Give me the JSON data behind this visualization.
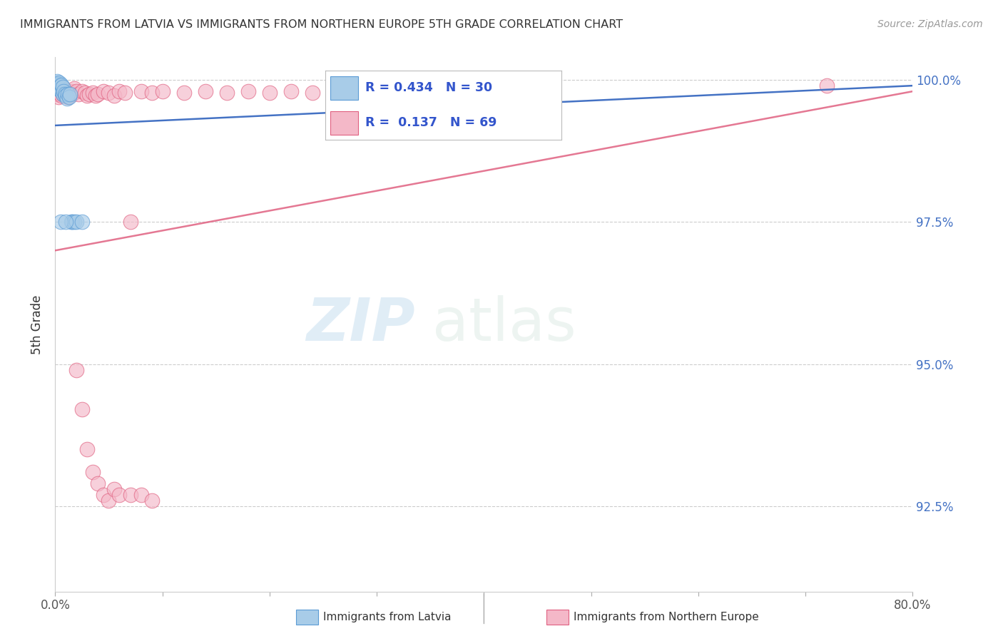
{
  "title": "IMMIGRANTS FROM LATVIA VS IMMIGRANTS FROM NORTHERN EUROPE 5TH GRADE CORRELATION CHART",
  "source": "Source: ZipAtlas.com",
  "ylabel": "5th Grade",
  "xlim": [
    0.0,
    0.8
  ],
  "ylim": [
    0.91,
    1.004
  ],
  "x_tick_positions": [
    0.0,
    0.1,
    0.2,
    0.3,
    0.4,
    0.5,
    0.6,
    0.7,
    0.8
  ],
  "x_tick_labels": [
    "0.0%",
    "",
    "",
    "",
    "",
    "",
    "",
    "",
    "80.0%"
  ],
  "y_tick_positions": [
    0.925,
    0.95,
    0.975,
    1.0
  ],
  "y_tick_labels_right": [
    "92.5%",
    "95.0%",
    "97.5%",
    "100.0%"
  ],
  "blue_color": "#a8cce8",
  "blue_edge_color": "#5b9bd5",
  "pink_color": "#f4b8c8",
  "pink_edge_color": "#e06080",
  "blue_line_color": "#4472c4",
  "pink_line_color": "#e07090",
  "blue_x": [
    0.001,
    0.001,
    0.002,
    0.002,
    0.002,
    0.003,
    0.003,
    0.003,
    0.004,
    0.004,
    0.005,
    0.005,
    0.006,
    0.006,
    0.007,
    0.007,
    0.008,
    0.009,
    0.01,
    0.011,
    0.012,
    0.013,
    0.014,
    0.015,
    0.016,
    0.018,
    0.02,
    0.025,
    0.005,
    0.01
  ],
  "blue_y": [
    0.9995,
    0.9985,
    0.9992,
    0.9988,
    0.9998,
    0.999,
    0.9985,
    0.9993,
    0.9988,
    0.9995,
    0.999,
    0.9985,
    0.998,
    0.9992,
    0.9988,
    0.9975,
    0.998,
    0.9975,
    0.9972,
    0.9968,
    0.9975,
    0.997,
    0.9975,
    0.975,
    0.975,
    0.975,
    0.975,
    0.975,
    0.975,
    0.975
  ],
  "pink_x": [
    0.001,
    0.001,
    0.002,
    0.002,
    0.003,
    0.003,
    0.004,
    0.004,
    0.004,
    0.005,
    0.005,
    0.006,
    0.006,
    0.007,
    0.007,
    0.008,
    0.009,
    0.01,
    0.011,
    0.012,
    0.013,
    0.014,
    0.015,
    0.016,
    0.018,
    0.02,
    0.022,
    0.025,
    0.028,
    0.03,
    0.032,
    0.035,
    0.038,
    0.04,
    0.045,
    0.05,
    0.055,
    0.06,
    0.065,
    0.07,
    0.08,
    0.09,
    0.1,
    0.12,
    0.14,
    0.16,
    0.18,
    0.2,
    0.22,
    0.24,
    0.26,
    0.28,
    0.3,
    0.32,
    0.35,
    0.38,
    0.02,
    0.025,
    0.03,
    0.035,
    0.04,
    0.045,
    0.05,
    0.055,
    0.06,
    0.07,
    0.08,
    0.09,
    0.72
  ],
  "pink_y": [
    0.999,
    0.998,
    0.9992,
    0.9975,
    0.9988,
    0.997,
    0.9985,
    0.9978,
    0.9992,
    0.9982,
    0.9975,
    0.9988,
    0.9972,
    0.998,
    0.9975,
    0.9985,
    0.9978,
    0.998,
    0.9975,
    0.997,
    0.9978,
    0.9972,
    0.998,
    0.9975,
    0.9985,
    0.998,
    0.9975,
    0.998,
    0.9978,
    0.9972,
    0.9975,
    0.9978,
    0.9972,
    0.9975,
    0.998,
    0.9978,
    0.9972,
    0.998,
    0.9978,
    0.975,
    0.998,
    0.9978,
    0.998,
    0.9978,
    0.998,
    0.9978,
    0.998,
    0.9978,
    0.998,
    0.9978,
    0.998,
    0.9978,
    0.998,
    0.9978,
    0.998,
    0.998,
    0.949,
    0.942,
    0.935,
    0.931,
    0.929,
    0.927,
    0.926,
    0.928,
    0.927,
    0.927,
    0.927,
    0.926,
    0.999
  ],
  "blue_trend_x": [
    0.0,
    0.8
  ],
  "blue_trend_y": [
    0.992,
    0.999
  ],
  "pink_trend_x": [
    0.0,
    0.8
  ],
  "pink_trend_y": [
    0.97,
    0.998
  ]
}
